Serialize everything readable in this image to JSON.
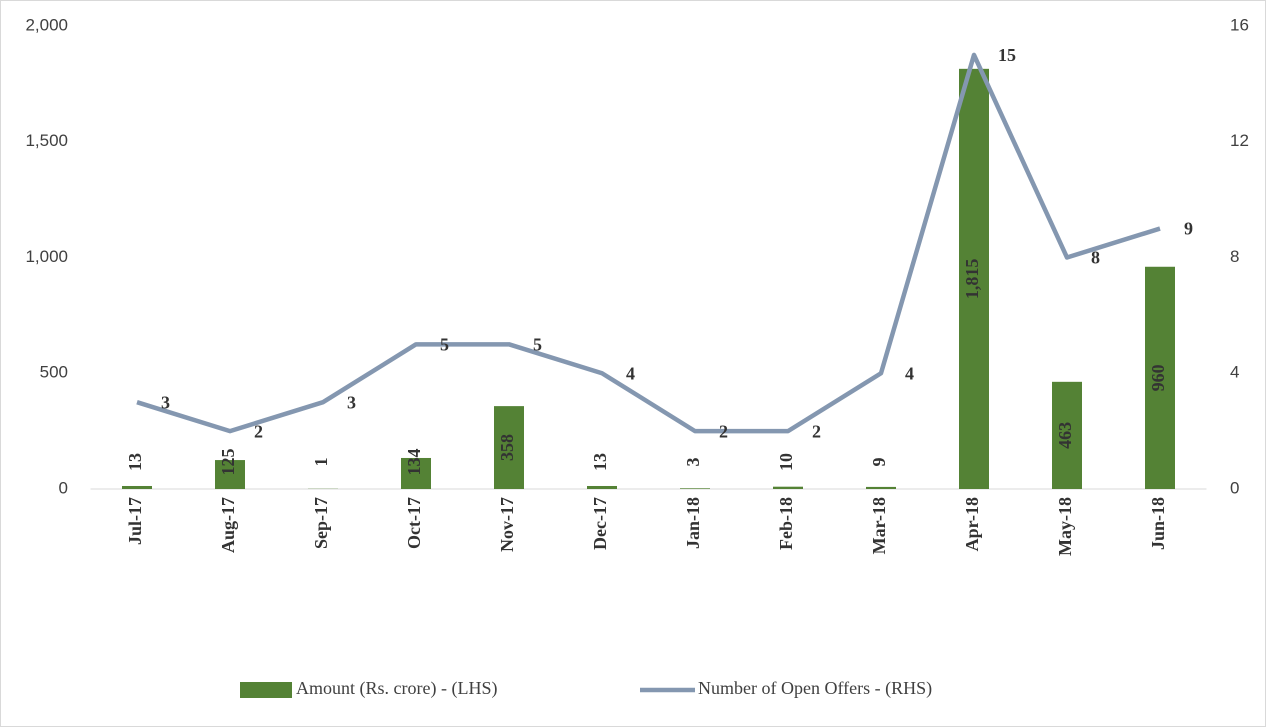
{
  "chart_data": {
    "type": "combo",
    "categories": [
      "Jul-17",
      "Aug-17",
      "Sep-17",
      "Oct-17",
      "Nov-17",
      "Dec-17",
      "Jan-18",
      "Feb-18",
      "Mar-18",
      "Apr-18",
      "May-18",
      "Jun-18"
    ],
    "series": [
      {
        "name": "Amount (Rs. crore) - (LHS)",
        "type": "bar",
        "color": "#548235",
        "values": [
          13,
          125,
          1,
          134,
          358,
          13,
          3,
          10,
          9,
          1815,
          463,
          960
        ],
        "value_labels": [
          "13",
          "125",
          "1",
          "134",
          "358",
          "13",
          "3",
          "10",
          "9",
          "1,815",
          "463",
          "960"
        ]
      },
      {
        "name": "Number of Open Offers - (RHS)",
        "type": "line",
        "axis": "y2",
        "color": "#8497b0",
        "values": [
          3,
          2,
          3,
          5,
          5,
          4,
          2,
          2,
          4,
          15,
          8,
          9
        ]
      }
    ],
    "ylim": [
      0,
      2000
    ],
    "yticks": [
      0,
      500,
      {
        "value": 1000,
        "label": "1,000"
      },
      {
        "value": 1500,
        "label": "1,500"
      },
      {
        "value": 2000,
        "label": "2,000"
      }
    ],
    "y2lim": [
      0,
      16
    ],
    "y2ticks": [
      0,
      4,
      8,
      12,
      16
    ],
    "grid": false,
    "legend": "bottom"
  }
}
